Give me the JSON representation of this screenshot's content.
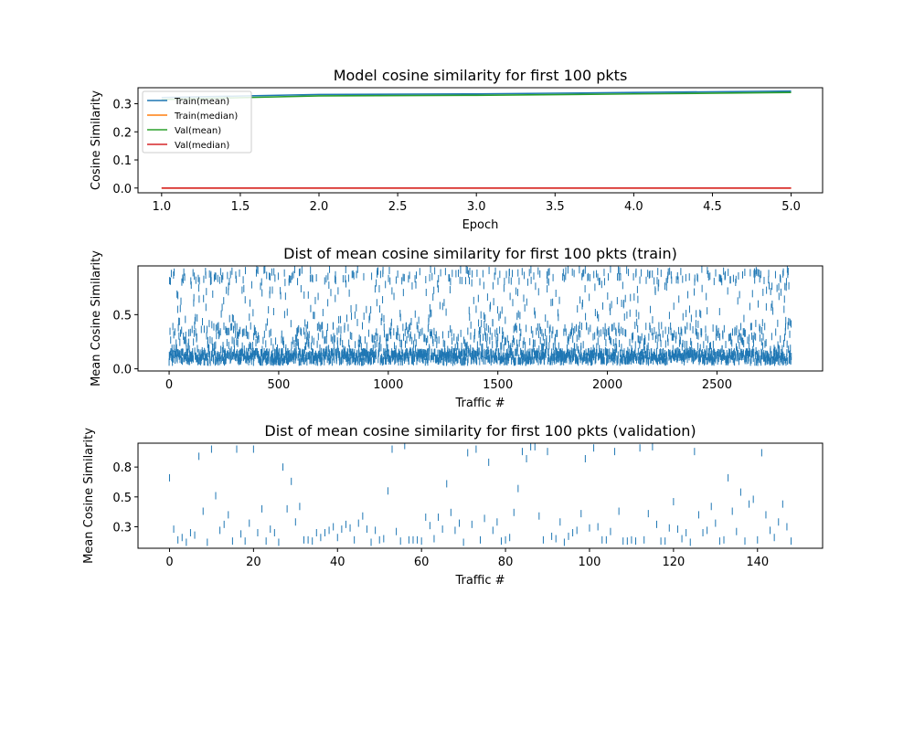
{
  "chart_data": [
    {
      "type": "line",
      "title": "Model cosine similarity for first 100 pkts",
      "xlabel": "Epoch",
      "ylabel": "Cosine Similarity",
      "xlim": [
        0.85,
        5.2
      ],
      "ylim": [
        -0.017,
        0.357
      ],
      "xticks": [
        1.0,
        1.5,
        2.0,
        2.5,
        3.0,
        3.5,
        4.0,
        4.5,
        5.0
      ],
      "yticks": [
        0.0,
        0.1,
        0.2,
        0.3
      ],
      "grid": false,
      "legend": "upper-left",
      "x": [
        1,
        2,
        3,
        4,
        5
      ],
      "series": [
        {
          "name": "Train(mean)",
          "color": "#1f77b4",
          "values": [
            0.322,
            0.333,
            0.335,
            0.34,
            0.345
          ]
        },
        {
          "name": "Train(median)",
          "color": "#ff7f0e",
          "values": [
            0.0,
            0.0,
            0.0,
            0.0,
            0.0
          ]
        },
        {
          "name": "Val(mean)",
          "color": "#2ca02c",
          "values": [
            0.315,
            0.328,
            0.33,
            0.335,
            0.34
          ]
        },
        {
          "name": "Val(median)",
          "color": "#d62728",
          "values": [
            0.0,
            0.0,
            0.0,
            0.0,
            0.0
          ]
        }
      ]
    },
    {
      "type": "scatter",
      "marker": "vertical-line",
      "title": "Dist of mean cosine similarity for first 100 pkts (train)",
      "xlabel": "Traffic #",
      "ylabel": "Mean Cosine Similarity",
      "xlim": [
        -142,
        2982
      ],
      "ylim": [
        -0.02,
        0.95
      ],
      "xticks": [
        0,
        500,
        1000,
        1500,
        2000,
        2500
      ],
      "yticks": [
        0.0,
        0.5
      ],
      "grid": false,
      "color": "#1f77b4",
      "n_points": 2840
    },
    {
      "type": "scatter",
      "marker": "vertical-line",
      "title": "Dist of mean cosine similarity for first 100 pkts (validation)",
      "xlabel": "Traffic #",
      "ylabel": "Mean Cosine Similarity",
      "xlim": [
        -7.5,
        155.5
      ],
      "ylim": [
        0.07,
        0.95
      ],
      "xticks": [
        0,
        20,
        40,
        60,
        80,
        100,
        120,
        140
      ],
      "yticks": [
        0.25,
        0.5,
        0.75
      ],
      "grid": false,
      "color": "#1f77b4",
      "x": [
        0,
        1,
        2,
        3,
        4,
        5,
        6,
        7,
        8,
        9,
        10,
        11,
        12,
        13,
        14,
        15,
        16,
        17,
        18,
        19,
        20,
        21,
        22,
        23,
        24,
        25,
        26,
        27,
        28,
        29,
        30,
        31,
        32,
        33,
        34,
        35,
        36,
        37,
        38,
        39,
        40,
        41,
        42,
        43,
        44,
        45,
        46,
        47,
        48,
        49,
        50,
        51,
        52,
        53,
        54,
        55,
        56,
        57,
        58,
        59,
        60,
        61,
        62,
        63,
        64,
        65,
        66,
        67,
        68,
        69,
        70,
        71,
        72,
        73,
        74,
        75,
        76,
        77,
        78,
        79,
        80,
        81,
        82,
        83,
        84,
        85,
        86,
        87,
        88,
        89,
        90,
        91,
        92,
        93,
        94,
        95,
        96,
        97,
        98,
        99,
        100,
        101,
        102,
        103,
        104,
        105,
        106,
        107,
        108,
        109,
        110,
        111,
        112,
        113,
        114,
        115,
        116,
        117,
        118,
        119,
        120,
        121,
        122,
        123,
        124,
        125,
        126,
        127,
        128,
        129,
        130,
        131,
        132,
        133,
        134,
        135,
        136,
        137,
        138,
        139,
        140,
        141,
        142,
        143,
        144,
        145,
        146,
        147,
        148
      ],
      "values": [
        0.66,
        0.23,
        0.14,
        0.16,
        0.12,
        0.2,
        0.18,
        0.84,
        0.38,
        0.12,
        0.9,
        0.51,
        0.22,
        0.27,
        0.35,
        0.13,
        0.9,
        0.19,
        0.13,
        0.28,
        0.9,
        0.2,
        0.4,
        0.13,
        0.23,
        0.2,
        0.12,
        0.75,
        0.4,
        0.63,
        0.29,
        0.42,
        0.14,
        0.14,
        0.13,
        0.2,
        0.16,
        0.2,
        0.22,
        0.25,
        0.16,
        0.23,
        0.27,
        0.24,
        0.14,
        0.28,
        0.34,
        0.23,
        0.12,
        0.22,
        0.14,
        0.15,
        0.55,
        0.9,
        0.21,
        0.13,
        0.93,
        0.14,
        0.14,
        0.14,
        0.13,
        0.33,
        0.26,
        0.15,
        0.33,
        0.23,
        0.61,
        0.37,
        0.22,
        0.28,
        0.12,
        0.87,
        0.27,
        0.9,
        0.14,
        0.32,
        0.79,
        0.22,
        0.29,
        0.13,
        0.14,
        0.16,
        0.37,
        0.57,
        0.88,
        0.82,
        0.92,
        0.92,
        0.34,
        0.14,
        0.88,
        0.17,
        0.15,
        0.29,
        0.12,
        0.17,
        0.2,
        0.22,
        0.36,
        0.82,
        0.24,
        0.91,
        0.25,
        0.14,
        0.14,
        0.21,
        0.88,
        0.38,
        0.13,
        0.13,
        0.14,
        0.13,
        0.91,
        0.14,
        0.36,
        0.92,
        0.27,
        0.13,
        0.13,
        0.24,
        0.46,
        0.23,
        0.15,
        0.2,
        0.12,
        0.88,
        0.35,
        0.2,
        0.22,
        0.42,
        0.28,
        0.13,
        0.14,
        0.66,
        0.38,
        0.21,
        0.54,
        0.13,
        0.44,
        0.48,
        0.14,
        0.87,
        0.35,
        0.22,
        0.16,
        0.29,
        0.44,
        0.25,
        0.13
      ]
    }
  ]
}
